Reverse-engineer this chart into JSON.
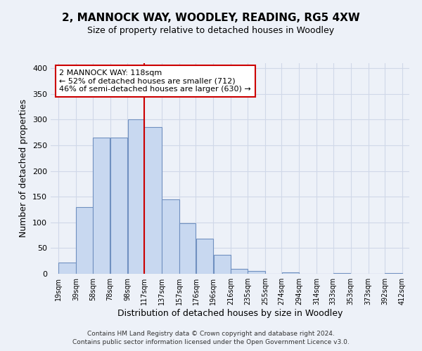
{
  "title": "2, MANNOCK WAY, WOODLEY, READING, RG5 4XW",
  "subtitle": "Size of property relative to detached houses in Woodley",
  "xlabel": "Distribution of detached houses by size in Woodley",
  "ylabel": "Number of detached properties",
  "bar_left_edges": [
    19,
    39,
    58,
    78,
    98,
    117,
    137,
    157,
    176,
    196,
    216,
    235,
    255,
    274,
    294,
    314,
    333,
    353,
    373,
    392
  ],
  "bar_widths": [
    20,
    19,
    20,
    20,
    19,
    20,
    20,
    19,
    20,
    20,
    19,
    20,
    19,
    20,
    20,
    19,
    20,
    20,
    19,
    20
  ],
  "bar_heights": [
    22,
    130,
    265,
    265,
    300,
    285,
    145,
    98,
    68,
    37,
    9,
    5,
    0,
    3,
    0,
    0,
    2,
    0,
    0,
    2
  ],
  "bar_color": "#c8d8f0",
  "bar_edge_color": "#7090c0",
  "marker_x": 117,
  "marker_color": "#cc0000",
  "annotation_text_line1": "2 MANNOCK WAY: 118sqm",
  "annotation_text_line2": "← 52% of detached houses are smaller (712)",
  "annotation_text_line3": "46% of semi-detached houses are larger (630) →",
  "annotation_box_color": "#cc0000",
  "xlim": [
    10,
    420
  ],
  "ylim": [
    0,
    410
  ],
  "xtick_labels": [
    "19sqm",
    "39sqm",
    "58sqm",
    "78sqm",
    "98sqm",
    "117sqm",
    "137sqm",
    "157sqm",
    "176sqm",
    "196sqm",
    "216sqm",
    "235sqm",
    "255sqm",
    "274sqm",
    "294sqm",
    "314sqm",
    "333sqm",
    "353sqm",
    "373sqm",
    "392sqm",
    "412sqm"
  ],
  "xtick_positions": [
    19,
    39,
    58,
    78,
    98,
    117,
    137,
    157,
    176,
    196,
    216,
    235,
    255,
    274,
    294,
    314,
    333,
    353,
    373,
    392,
    412
  ],
  "ytick_positions": [
    0,
    50,
    100,
    150,
    200,
    250,
    300,
    350,
    400
  ],
  "background_color": "#edf1f8",
  "footer_line1": "Contains HM Land Registry data © Crown copyright and database right 2024.",
  "footer_line2": "Contains public sector information licensed under the Open Government Licence v3.0."
}
